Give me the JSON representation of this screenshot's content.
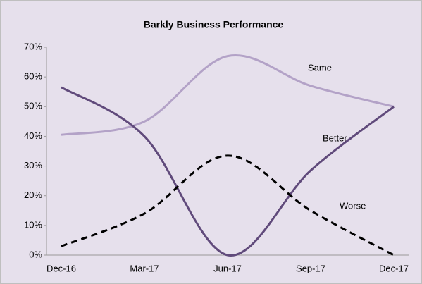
{
  "chart_data": {
    "type": "line",
    "title": "Barkly Business Performance",
    "categories": [
      "Dec-16",
      "Mar-17",
      "Jun-17",
      "Sep-17",
      "Dec-17"
    ],
    "series": [
      {
        "name": "Same",
        "color": "#b3a2c7",
        "values": [
          40.5,
          45,
          67,
          57,
          50
        ]
      },
      {
        "name": "Better",
        "color": "#604a7b",
        "values": [
          56.5,
          40,
          0,
          28.5,
          50
        ]
      },
      {
        "name": "Worse",
        "color": "#000000",
        "dashed": true,
        "values": [
          3,
          14,
          33.5,
          15,
          0
        ]
      }
    ],
    "ylim": [
      0,
      70
    ],
    "yticks": [
      {
        "value": 0,
        "label": "0%"
      },
      {
        "value": 10,
        "label": "10%"
      },
      {
        "value": 20,
        "label": "20%"
      },
      {
        "value": 30,
        "label": "30%"
      },
      {
        "value": 40,
        "label": "40%"
      },
      {
        "value": 50,
        "label": "50%"
      },
      {
        "value": 60,
        "label": "60%"
      },
      {
        "value": 70,
        "label": "70%"
      }
    ],
    "smooth": true
  }
}
